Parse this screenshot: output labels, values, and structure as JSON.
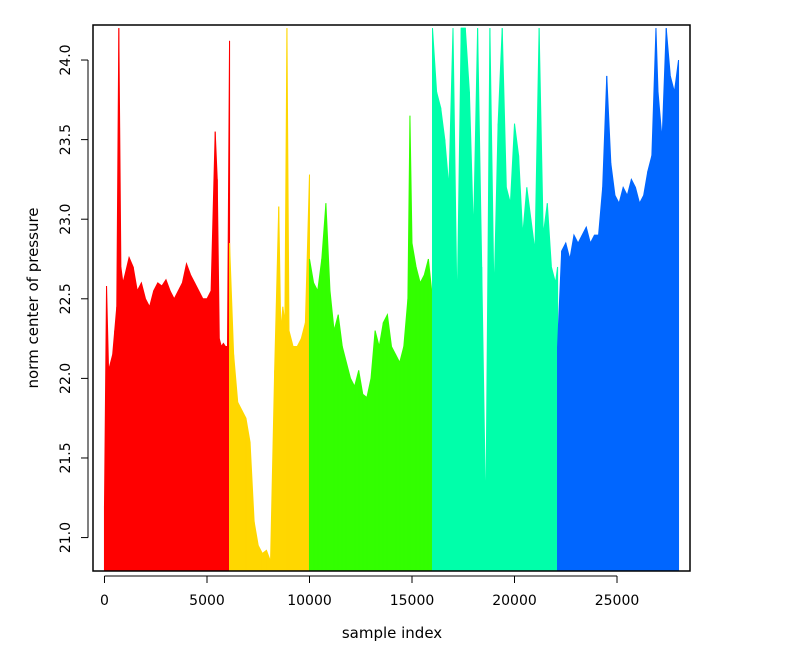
{
  "chart_data": {
    "type": "bar",
    "title": "",
    "xlabel": "sample index",
    "ylabel": "norm center of pressure",
    "xlim": [
      -560,
      28560
    ],
    "ylim": [
      20.79,
      24.22
    ],
    "x_ticks": [
      0,
      5000,
      10000,
      15000,
      20000,
      25000
    ],
    "y_ticks": [
      21.0,
      21.5,
      22.0,
      22.5,
      23.0,
      23.5,
      24.0
    ],
    "grid": false,
    "legend": "none",
    "series": [
      {
        "color": "#FF0000",
        "x_range": [
          0,
          6100
        ],
        "x": [
          0,
          100,
          200,
          300,
          400,
          500,
          600,
          700,
          800,
          900,
          1000,
          1200,
          1400,
          1600,
          1800,
          2000,
          2200,
          2400,
          2600,
          2800,
          3000,
          3200,
          3400,
          3600,
          3800,
          4000,
          4200,
          4400,
          4600,
          4800,
          5000,
          5200,
          5400,
          5500,
          5600,
          5700,
          5800,
          5900,
          6000,
          6100
        ],
        "values": [
          21.2,
          22.58,
          22.05,
          22.1,
          22.15,
          22.3,
          22.45,
          24.2,
          22.7,
          22.6,
          22.65,
          22.76,
          22.7,
          22.55,
          22.6,
          22.5,
          22.45,
          22.55,
          22.6,
          22.58,
          22.62,
          22.55,
          22.5,
          22.55,
          22.6,
          22.72,
          22.65,
          22.6,
          22.55,
          22.5,
          22.5,
          22.55,
          23.55,
          23.25,
          22.25,
          22.2,
          22.22,
          22.2,
          22.2,
          24.12
        ]
      },
      {
        "color": "#FFD700",
        "x_range": [
          6100,
          10000
        ],
        "x": [
          6100,
          6300,
          6500,
          6700,
          6900,
          7100,
          7300,
          7500,
          7700,
          7900,
          8100,
          8300,
          8500,
          8600,
          8700,
          8800,
          8900,
          9000,
          9200,
          9400,
          9600,
          9800,
          10000
        ],
        "values": [
          22.85,
          22.15,
          21.85,
          21.8,
          21.75,
          21.6,
          21.1,
          20.95,
          20.9,
          20.92,
          20.85,
          22.05,
          23.08,
          22.3,
          22.45,
          22.35,
          24.2,
          22.3,
          22.2,
          22.2,
          22.25,
          22.35,
          23.28
        ]
      },
      {
        "color": "#33FF00",
        "x_range": [
          10000,
          16000
        ],
        "x": [
          10000,
          10200,
          10400,
          10600,
          10800,
          11000,
          11200,
          11400,
          11600,
          11800,
          12000,
          12200,
          12400,
          12600,
          12800,
          13000,
          13200,
          13400,
          13600,
          13800,
          14000,
          14200,
          14400,
          14600,
          14800,
          14900,
          15000,
          15200,
          15400,
          15600,
          15800,
          16000
        ],
        "values": [
          22.75,
          22.6,
          22.55,
          22.75,
          23.1,
          22.55,
          22.3,
          22.4,
          22.2,
          22.1,
          22.0,
          21.95,
          22.05,
          21.9,
          21.88,
          22.0,
          22.3,
          22.2,
          22.35,
          22.4,
          22.2,
          22.15,
          22.1,
          22.2,
          22.5,
          23.65,
          22.85,
          22.7,
          22.6,
          22.65,
          22.75,
          22.5
        ]
      },
      {
        "color": "#00FFAA",
        "x_range": [
          16000,
          22100
        ],
        "x": [
          16000,
          16200,
          16400,
          16600,
          16800,
          17000,
          17200,
          17400,
          17600,
          17800,
          18000,
          18200,
          18400,
          18600,
          18800,
          19000,
          19200,
          19400,
          19600,
          19800,
          20000,
          20200,
          20400,
          20600,
          20800,
          21000,
          21200,
          21400,
          21600,
          21800,
          22000,
          22100
        ],
        "values": [
          24.2,
          23.8,
          23.7,
          23.5,
          23.2,
          24.2,
          22.4,
          24.2,
          24.2,
          23.8,
          22.9,
          24.2,
          22.7,
          21.1,
          24.2,
          22.5,
          23.6,
          24.2,
          23.2,
          23.1,
          23.6,
          23.4,
          22.9,
          23.2,
          23.0,
          22.8,
          24.2,
          22.9,
          23.1,
          22.7,
          22.6,
          22.7
        ]
      },
      {
        "color": "#0066FF",
        "x_range": [
          22100,
          28000
        ],
        "x": [
          22100,
          22300,
          22500,
          22700,
          22900,
          23100,
          23300,
          23500,
          23700,
          23900,
          24100,
          24300,
          24500,
          24700,
          24900,
          25100,
          25300,
          25500,
          25700,
          25900,
          26100,
          26300,
          26500,
          26700,
          26900,
          27000,
          27200,
          27400,
          27600,
          27800,
          28000
        ],
        "values": [
          22.2,
          22.8,
          22.85,
          22.75,
          22.9,
          22.85,
          22.9,
          22.95,
          22.85,
          22.9,
          22.9,
          23.2,
          23.9,
          23.35,
          23.15,
          23.1,
          23.2,
          23.15,
          23.25,
          23.2,
          23.1,
          23.15,
          23.3,
          23.4,
          24.2,
          23.8,
          23.5,
          24.2,
          23.9,
          23.8,
          24.0
        ]
      }
    ]
  }
}
